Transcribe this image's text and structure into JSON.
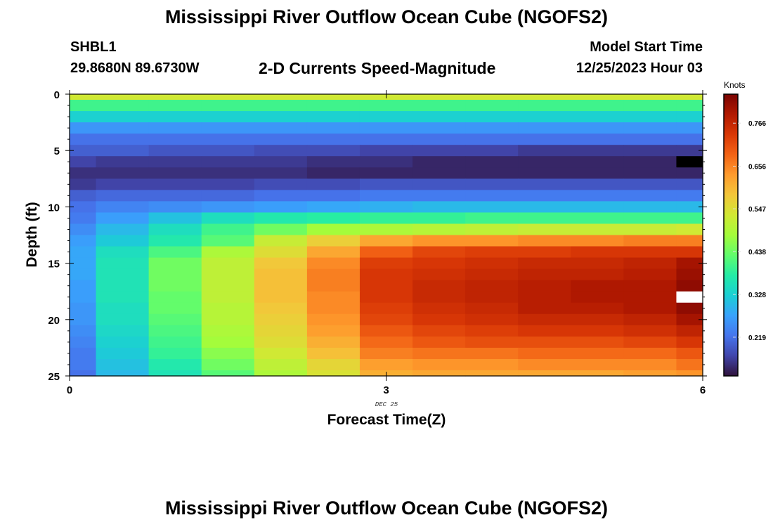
{
  "header": {
    "title": "Mississippi River Outflow Ocean Cube (NGOFS2)",
    "station_id": "SHBL1",
    "station_coords": "29.8680N  89.6730W",
    "subtitle": "2-D Currents Speed-Magnitude",
    "model_start_label": "Model Start Time",
    "model_start_value": "12/25/2023 Hour 03"
  },
  "footer": {
    "title": "Mississippi River Outflow Ocean Cube (NGOFS2)"
  },
  "chart_data": {
    "type": "heatmap",
    "title": "2-D Currents Speed-Magnitude",
    "xlabel": "Forecast Time(Z)",
    "ylabel": "Depth (ft)",
    "x_sublabel": "DEC 25",
    "colorbar_label": "Knots",
    "colorbar_ticks": [
      0.219,
      0.328,
      0.438,
      0.547,
      0.656,
      0.766
    ],
    "colorbar_range": [
      0.12,
      0.84
    ],
    "xlim": [
      0,
      6
    ],
    "ylim": [
      0,
      25
    ],
    "y_reversed": true,
    "x_ticks": [
      0,
      3,
      6
    ],
    "y_ticks": [
      0,
      5,
      10,
      15,
      20,
      25
    ],
    "x_bins": [
      0,
      0.25,
      0.75,
      1.25,
      1.75,
      2.25,
      2.75,
      3.25,
      3.75,
      4.25,
      4.75,
      5.25,
      5.75,
      6.0
    ],
    "depth_bins": [
      0,
      0.5,
      1.5,
      2.5,
      3.5,
      4.5,
      5.5,
      6.5,
      7.5,
      8.5,
      9.5,
      10.5,
      11.5,
      12.5,
      13.5,
      14.5,
      15.5,
      16.5,
      17.5,
      18.5,
      19.5,
      20.5,
      21.5,
      22.5,
      23.5,
      24.5,
      25
    ],
    "values": [
      [
        0.53,
        0.53,
        0.53,
        0.53,
        0.53,
        0.53,
        0.53,
        0.53,
        0.53,
        0.53,
        0.53,
        0.53,
        0.53
      ],
      [
        0.4,
        0.4,
        0.4,
        0.4,
        0.4,
        0.4,
        0.4,
        0.4,
        0.4,
        0.4,
        0.4,
        0.4,
        0.4
      ],
      [
        0.33,
        0.33,
        0.33,
        0.33,
        0.33,
        0.33,
        0.33,
        0.33,
        0.33,
        0.33,
        0.33,
        0.33,
        0.33
      ],
      [
        0.26,
        0.26,
        0.26,
        0.26,
        0.26,
        0.26,
        0.26,
        0.26,
        0.26,
        0.26,
        0.26,
        0.26,
        0.26
      ],
      [
        0.22,
        0.22,
        0.22,
        0.22,
        0.22,
        0.22,
        0.22,
        0.22,
        0.22,
        0.22,
        0.22,
        0.22,
        0.22
      ],
      [
        0.2,
        0.2,
        0.19,
        0.19,
        0.18,
        0.18,
        0.17,
        0.17,
        0.17,
        0.16,
        0.16,
        0.16,
        0.16
      ],
      [
        0.17,
        0.16,
        0.16,
        0.16,
        0.16,
        0.15,
        0.15,
        0.14,
        0.14,
        0.14,
        0.14,
        0.14,
        null
      ],
      [
        0.15,
        0.15,
        0.15,
        0.15,
        0.15,
        0.14,
        0.14,
        0.14,
        0.14,
        0.14,
        0.14,
        0.14,
        0.14
      ],
      [
        0.16,
        0.17,
        0.17,
        0.17,
        0.18,
        0.18,
        0.19,
        0.19,
        0.19,
        0.19,
        0.19,
        0.19,
        0.19
      ],
      [
        0.2,
        0.21,
        0.21,
        0.21,
        0.22,
        0.22,
        0.23,
        0.23,
        0.23,
        0.23,
        0.23,
        0.23,
        0.23
      ],
      [
        0.22,
        0.24,
        0.25,
        0.26,
        0.27,
        0.28,
        0.29,
        0.3,
        0.3,
        0.3,
        0.3,
        0.3,
        0.3
      ],
      [
        0.23,
        0.27,
        0.31,
        0.35,
        0.37,
        0.38,
        0.39,
        0.39,
        0.4,
        0.4,
        0.4,
        0.4,
        0.4
      ],
      [
        0.25,
        0.3,
        0.35,
        0.4,
        0.44,
        0.48,
        0.49,
        0.5,
        0.51,
        0.52,
        0.52,
        0.52,
        0.53
      ],
      [
        0.27,
        0.32,
        0.37,
        0.42,
        0.52,
        0.57,
        0.62,
        0.64,
        0.64,
        0.65,
        0.65,
        0.66,
        0.66
      ],
      [
        0.28,
        0.35,
        0.41,
        0.49,
        0.55,
        0.62,
        0.69,
        0.72,
        0.73,
        0.73,
        0.74,
        0.74,
        0.74
      ],
      [
        0.28,
        0.36,
        0.44,
        0.51,
        0.58,
        0.65,
        0.73,
        0.74,
        0.75,
        0.76,
        0.76,
        0.77,
        0.8
      ],
      [
        0.28,
        0.36,
        0.44,
        0.51,
        0.59,
        0.66,
        0.74,
        0.75,
        0.76,
        0.77,
        0.77,
        0.78,
        0.81
      ],
      [
        0.27,
        0.36,
        0.44,
        0.51,
        0.59,
        0.66,
        0.74,
        0.76,
        0.77,
        0.78,
        0.79,
        0.79,
        0.82
      ],
      [
        0.27,
        0.36,
        0.43,
        0.51,
        0.59,
        0.65,
        0.74,
        0.76,
        0.77,
        0.78,
        0.79,
        0.79,
        null
      ],
      [
        0.26,
        0.35,
        0.43,
        0.5,
        0.58,
        0.65,
        0.73,
        0.75,
        0.76,
        0.78,
        0.78,
        0.79,
        0.82
      ],
      [
        0.26,
        0.35,
        0.42,
        0.5,
        0.57,
        0.64,
        0.72,
        0.74,
        0.75,
        0.76,
        0.76,
        0.77,
        0.8
      ],
      [
        0.25,
        0.34,
        0.41,
        0.49,
        0.56,
        0.63,
        0.7,
        0.72,
        0.73,
        0.74,
        0.74,
        0.75,
        0.77
      ],
      [
        0.24,
        0.33,
        0.4,
        0.48,
        0.55,
        0.61,
        0.68,
        0.7,
        0.71,
        0.71,
        0.71,
        0.72,
        0.74
      ],
      [
        0.23,
        0.32,
        0.39,
        0.46,
        0.53,
        0.59,
        0.66,
        0.67,
        0.67,
        0.68,
        0.68,
        0.68,
        0.7
      ],
      [
        0.23,
        0.31,
        0.37,
        0.44,
        0.51,
        0.56,
        0.63,
        0.64,
        0.64,
        0.65,
        0.65,
        0.65,
        0.67
      ],
      [
        0.22,
        0.3,
        0.36,
        0.42,
        0.49,
        0.54,
        0.61,
        0.62,
        0.62,
        0.62,
        0.62,
        0.63,
        0.64
      ]
    ],
    "special_cells": [
      {
        "row": 6,
        "col": 12,
        "color": "#000000"
      },
      {
        "row": 18,
        "col": 12,
        "color": "#ffffff"
      }
    ],
    "colormap_stops": [
      "#30123b",
      "#4145ab",
      "#4675ed",
      "#39a2fc",
      "#1bcfd4",
      "#24eca6",
      "#61fc6c",
      "#a4fc3b",
      "#d1e834",
      "#f3c63a",
      "#fe9b2d",
      "#f36315",
      "#d93806",
      "#b11901",
      "#7a0402"
    ]
  }
}
